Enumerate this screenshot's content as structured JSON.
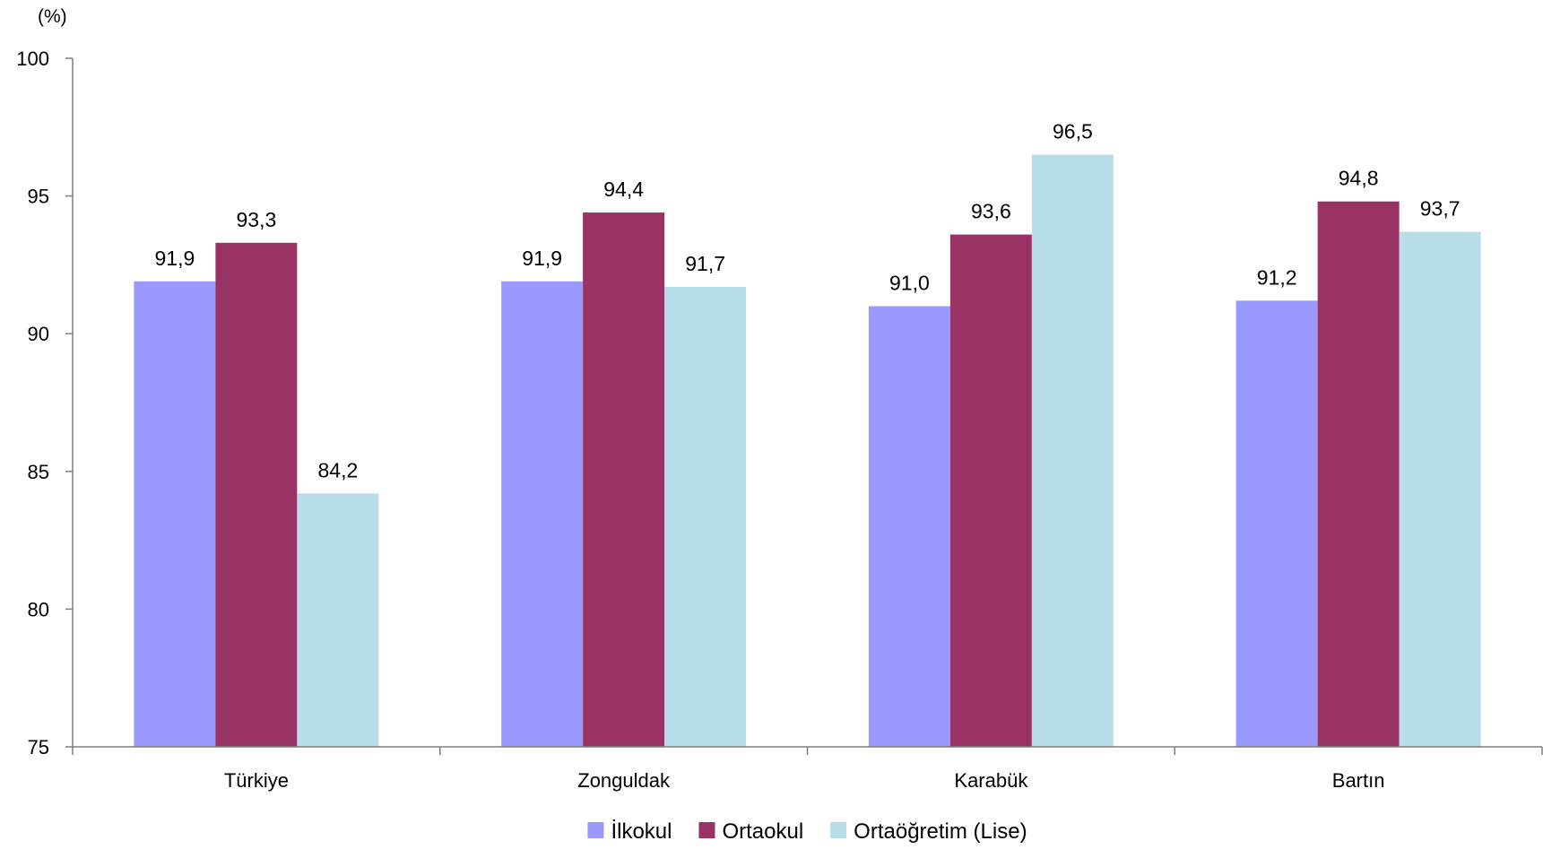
{
  "chart_data": {
    "type": "bar",
    "title": "",
    "unit_label": "(%)",
    "xlabel": "",
    "ylabel": "",
    "categories": [
      "Türkiye",
      "Zonguldak",
      "Karabük",
      "Bartın"
    ],
    "series": [
      {
        "name": "İlkokul",
        "color": "#9999FF",
        "values": [
          91.9,
          91.9,
          91.0,
          91.2
        ],
        "labels": [
          "91,9",
          "91,9",
          "91,0",
          "91,2"
        ]
      },
      {
        "name": "Ortaokul",
        "color": "#993366",
        "values": [
          93.3,
          94.4,
          93.6,
          94.8
        ],
        "labels": [
          "93,3",
          "94,4",
          "93,6",
          "94,8"
        ]
      },
      {
        "name": "Ortaöğretim (Lise)",
        "color": "#B7DEE8",
        "values": [
          84.2,
          91.7,
          96.5,
          93.7
        ],
        "labels": [
          "84,2",
          "91,7",
          "96,5",
          "93,7"
        ]
      }
    ],
    "ylim": [
      75,
      100
    ],
    "yticks": [
      75,
      80,
      85,
      90,
      95,
      100
    ],
    "ytick_labels": [
      "75",
      "80",
      "85",
      "90",
      "95",
      "100"
    ],
    "grid": false,
    "legend_position": "bottom"
  }
}
